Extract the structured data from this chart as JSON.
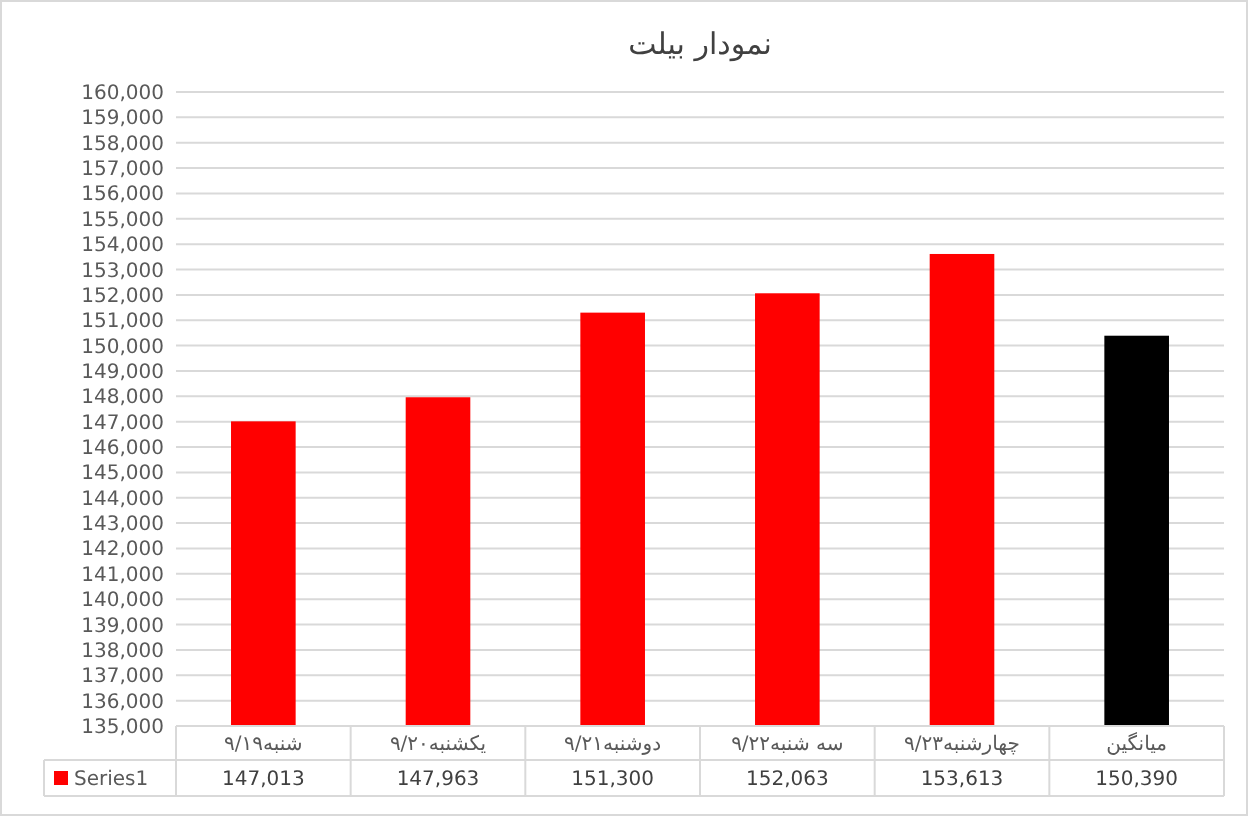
{
  "chart_data": {
    "type": "bar",
    "title": "نمودار بیلت",
    "categories": [
      "شنبه۹/۱۹",
      "یکشنبه۹/۲۰",
      "دوشنبه۹/۲۱",
      "سه شنبه۹/۲۲",
      "چهارشنبه۹/۲۳",
      "میانگین"
    ],
    "series": [
      {
        "name": "Series1",
        "color": "#ff0000",
        "colors": [
          "#ff0000",
          "#ff0000",
          "#ff0000",
          "#ff0000",
          "#ff0000",
          "#000000"
        ],
        "values": [
          147013,
          147963,
          151300,
          152063,
          153613,
          150390
        ],
        "value_labels": [
          "147,013",
          "147,963",
          "151,300",
          "152,063",
          "153,613",
          "150,390"
        ]
      }
    ],
    "ylim": [
      135000,
      160000
    ],
    "yticks": [
      {
        "value": 135000,
        "label": "135,000"
      },
      {
        "value": 136000,
        "label": "136,000"
      },
      {
        "value": 137000,
        "label": "137,000"
      },
      {
        "value": 138000,
        "label": "138,000"
      },
      {
        "value": 139000,
        "label": "139,000"
      },
      {
        "value": 140000,
        "label": "140,000"
      },
      {
        "value": 141000,
        "label": "141,000"
      },
      {
        "value": 142000,
        "label": "142,000"
      },
      {
        "value": 143000,
        "label": "143,000"
      },
      {
        "value": 144000,
        "label": "144,000"
      },
      {
        "value": 145000,
        "label": "145,000"
      },
      {
        "value": 146000,
        "label": "146,000"
      },
      {
        "value": 147000,
        "label": "147,000"
      },
      {
        "value": 148000,
        "label": "148,000"
      },
      {
        "value": 149000,
        "label": "149,000"
      },
      {
        "value": 150000,
        "label": "150,000"
      },
      {
        "value": 151000,
        "label": "151,000"
      },
      {
        "value": 152000,
        "label": "152,000"
      },
      {
        "value": 153000,
        "label": "153,000"
      },
      {
        "value": 154000,
        "label": "154,000"
      },
      {
        "value": 155000,
        "label": "155,000"
      },
      {
        "value": 156000,
        "label": "156,000"
      },
      {
        "value": 157000,
        "label": "157,000"
      },
      {
        "value": 158000,
        "label": "158,000"
      },
      {
        "value": 159000,
        "label": "159,000"
      },
      {
        "value": 160000,
        "label": "160,000"
      }
    ],
    "grid": "y",
    "legend": "bottom"
  }
}
